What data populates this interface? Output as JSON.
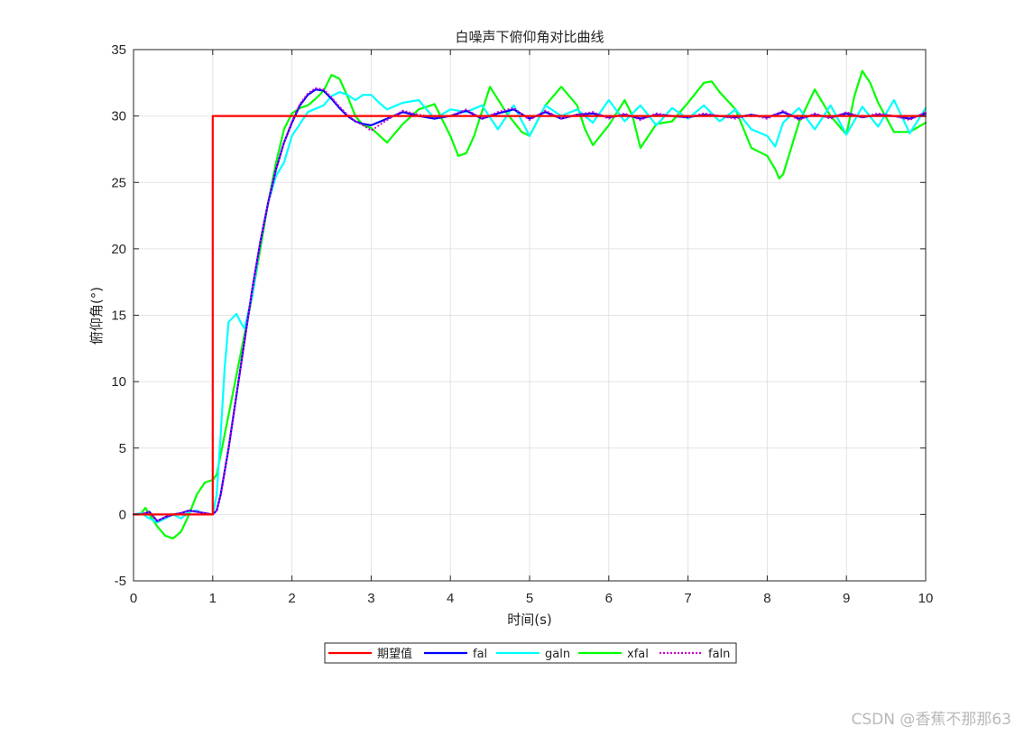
{
  "chart_data": {
    "type": "line",
    "title": "白噪声下俯仰角对比曲线",
    "xlabel": "时间(s)",
    "ylabel": "俯仰角(°)",
    "xlim": [
      0,
      10
    ],
    "ylim": [
      -5,
      35
    ],
    "xticks": [
      0,
      1,
      2,
      3,
      4,
      5,
      6,
      7,
      8,
      9,
      10
    ],
    "yticks": [
      -5,
      0,
      5,
      10,
      15,
      20,
      25,
      30,
      35
    ],
    "grid": true,
    "legend_position": "bottom-center-outside",
    "series": [
      {
        "name": "期望值",
        "color": "#ff0000",
        "dash": "solid",
        "x": [
          0,
          1,
          1,
          10
        ],
        "y": [
          0,
          0,
          30,
          30
        ]
      },
      {
        "name": "fal",
        "color": "#0000ff",
        "dash": "solid",
        "x": [
          0,
          0.1,
          0.2,
          0.3,
          0.4,
          0.5,
          0.6,
          0.7,
          0.8,
          0.9,
          1.0,
          1.05,
          1.1,
          1.2,
          1.3,
          1.4,
          1.5,
          1.6,
          1.7,
          1.8,
          1.9,
          2.0,
          2.1,
          2.2,
          2.3,
          2.4,
          2.5,
          2.6,
          2.7,
          2.8,
          2.9,
          3.0,
          3.2,
          3.4,
          3.6,
          3.8,
          4.0,
          4.2,
          4.4,
          4.6,
          4.8,
          5.0,
          5.2,
          5.4,
          5.6,
          5.8,
          6.0,
          6.2,
          6.4,
          6.6,
          6.8,
          7.0,
          7.2,
          7.4,
          7.6,
          7.8,
          8.0,
          8.2,
          8.4,
          8.6,
          8.8,
          9.0,
          9.2,
          9.4,
          9.6,
          9.8,
          10.0
        ],
        "y": [
          0,
          0,
          0.2,
          -0.5,
          -0.2,
          0,
          0.1,
          0.3,
          0.2,
          0.1,
          0,
          0.3,
          1.5,
          5,
          9,
          13,
          17,
          20.5,
          23.5,
          26,
          28,
          29.5,
          30.8,
          31.6,
          32.0,
          31.9,
          31.3,
          30.6,
          30.0,
          29.6,
          29.4,
          29.3,
          29.8,
          30.3,
          30.0,
          29.8,
          30.0,
          30.4,
          29.8,
          30.2,
          30.5,
          29.8,
          30.3,
          29.8,
          30.1,
          30.2,
          29.9,
          30.1,
          29.8,
          30.1,
          30.0,
          29.9,
          30.1,
          30.0,
          29.9,
          30.1,
          29.9,
          30.3,
          29.8,
          30.1,
          29.9,
          30.2,
          29.9,
          30.1,
          30.0,
          29.8,
          30.2
        ]
      },
      {
        "name": "galn",
        "color": "#00ffff",
        "dash": "solid",
        "x": [
          0,
          0.1,
          0.2,
          0.3,
          0.4,
          0.5,
          0.6,
          0.7,
          0.8,
          0.9,
          1.0,
          1.05,
          1.1,
          1.15,
          1.2,
          1.3,
          1.35,
          1.4,
          1.5,
          1.6,
          1.7,
          1.8,
          1.9,
          2.0,
          2.2,
          2.4,
          2.5,
          2.6,
          2.7,
          2.8,
          2.9,
          3.0,
          3.1,
          3.2,
          3.4,
          3.6,
          3.8,
          4.0,
          4.2,
          4.4,
          4.6,
          4.8,
          5.0,
          5.2,
          5.4,
          5.6,
          5.8,
          6.0,
          6.2,
          6.4,
          6.6,
          6.8,
          7.0,
          7.2,
          7.4,
          7.6,
          7.8,
          8.0,
          8.1,
          8.2,
          8.4,
          8.6,
          8.8,
          9.0,
          9.2,
          9.4,
          9.6,
          9.8,
          10.0
        ],
        "y": [
          0,
          0.1,
          -0.3,
          -0.6,
          -0.3,
          0,
          -0.3,
          0.2,
          0.3,
          0,
          0,
          1.5,
          6,
          11,
          14.5,
          15.1,
          14.5,
          14,
          16.5,
          20.5,
          23.5,
          25.5,
          26.5,
          28.5,
          30.3,
          30.8,
          31.5,
          31.8,
          31.6,
          31.2,
          31.6,
          31.6,
          31.0,
          30.5,
          31.0,
          31.2,
          29.8,
          30.5,
          30.3,
          30.8,
          29.0,
          30.8,
          28.5,
          30.8,
          30.0,
          30.5,
          29.5,
          31.2,
          29.6,
          30.8,
          29.3,
          30.6,
          29.8,
          30.8,
          29.6,
          30.5,
          29.0,
          28.5,
          27.7,
          29.5,
          30.6,
          29.0,
          30.8,
          28.6,
          30.7,
          29.2,
          31.2,
          28.7,
          30.6
        ]
      },
      {
        "name": "xfal",
        "color": "#00ff00",
        "dash": "solid",
        "x": [
          0,
          0.1,
          0.15,
          0.2,
          0.3,
          0.4,
          0.5,
          0.6,
          0.7,
          0.8,
          0.9,
          1.0,
          1.05,
          1.1,
          1.2,
          1.3,
          1.4,
          1.5,
          1.6,
          1.7,
          1.8,
          1.9,
          2.0,
          2.1,
          2.2,
          2.3,
          2.4,
          2.5,
          2.6,
          2.7,
          2.8,
          2.9,
          3.0,
          3.2,
          3.4,
          3.6,
          3.8,
          4.0,
          4.1,
          4.2,
          4.3,
          4.5,
          4.7,
          4.9,
          5.0,
          5.2,
          5.4,
          5.6,
          5.7,
          5.8,
          6.0,
          6.2,
          6.3,
          6.4,
          6.6,
          6.8,
          7.0,
          7.2,
          7.3,
          7.4,
          7.6,
          7.8,
          8.0,
          8.1,
          8.15,
          8.2,
          8.4,
          8.6,
          8.8,
          9.0,
          9.1,
          9.2,
          9.3,
          9.4,
          9.6,
          9.8,
          10.0
        ],
        "y": [
          0,
          0.1,
          0.5,
          0,
          -0.9,
          -1.6,
          -1.8,
          -1.3,
          0,
          1.5,
          2.4,
          2.6,
          3,
          4.5,
          7.5,
          10.5,
          13.5,
          16.5,
          20,
          23.5,
          26.5,
          29,
          30.2,
          30.6,
          30.8,
          31.3,
          31.9,
          33.1,
          32.8,
          31.5,
          30.0,
          29.3,
          29.1,
          28.0,
          29.4,
          30.5,
          30.9,
          28.5,
          27.0,
          27.2,
          28.5,
          32.2,
          30.3,
          28.8,
          28.5,
          30.8,
          32.2,
          30.8,
          29.0,
          27.8,
          29.3,
          31.2,
          30.0,
          27.6,
          29.4,
          29.6,
          31.0,
          32.5,
          32.6,
          31.8,
          30.5,
          27.6,
          27.0,
          26.0,
          25.3,
          25.6,
          29.5,
          32.0,
          30.0,
          28.6,
          31.5,
          33.4,
          32.5,
          31.0,
          28.8,
          28.8,
          29.5
        ]
      },
      {
        "name": "faln",
        "color": "#cc00cc",
        "dash": "dotted",
        "x": [
          0,
          0.1,
          0.2,
          0.3,
          0.4,
          0.5,
          0.6,
          0.7,
          0.8,
          0.9,
          1.0,
          1.05,
          1.1,
          1.2,
          1.3,
          1.4,
          1.5,
          1.6,
          1.7,
          1.8,
          1.9,
          2.0,
          2.1,
          2.2,
          2.3,
          2.4,
          2.5,
          2.6,
          2.7,
          2.8,
          2.9,
          3.0,
          3.2,
          3.4,
          3.6,
          3.8,
          4.0,
          4.2,
          4.4,
          4.6,
          4.8,
          5.0,
          5.2,
          5.4,
          5.6,
          5.8,
          6.0,
          6.2,
          6.4,
          6.6,
          6.8,
          7.0,
          7.2,
          7.4,
          7.6,
          7.8,
          8.0,
          8.2,
          8.4,
          8.6,
          8.8,
          9.0,
          9.2,
          9.4,
          9.6,
          9.8,
          10.0
        ],
        "y": [
          0,
          0,
          0.2,
          -0.5,
          -0.2,
          0,
          0.1,
          0.3,
          0.2,
          0.1,
          0,
          0.3,
          1.5,
          5,
          9,
          13,
          17,
          20.5,
          23.5,
          26,
          28,
          29.6,
          30.9,
          31.7,
          32.1,
          32.0,
          31.4,
          30.7,
          30.1,
          29.6,
          29.3,
          28.9,
          29.7,
          30.4,
          30.1,
          29.9,
          30.0,
          30.5,
          29.8,
          30.3,
          30.6,
          29.7,
          30.4,
          29.8,
          30.1,
          30.3,
          29.8,
          30.2,
          29.7,
          30.2,
          30.0,
          29.9,
          30.2,
          30.0,
          29.8,
          30.1,
          29.8,
          30.4,
          29.7,
          30.2,
          29.8,
          30.3,
          29.9,
          30.2,
          30.0,
          29.7,
          30.3
        ]
      }
    ]
  },
  "watermark": "CSDN @香蕉不那那63"
}
